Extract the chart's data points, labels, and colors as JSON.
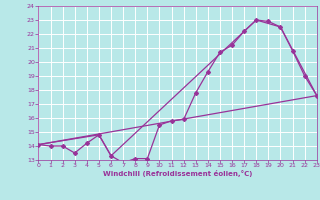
{
  "xlabel": "Windchill (Refroidissement éolien,°C)",
  "bg_color": "#b8e8e8",
  "grid_color": "#ffffff",
  "line_color": "#993399",
  "xlim": [
    0,
    23
  ],
  "ylim": [
    13,
    24
  ],
  "xticks": [
    0,
    1,
    2,
    3,
    4,
    5,
    6,
    7,
    8,
    9,
    10,
    11,
    12,
    13,
    14,
    15,
    16,
    17,
    18,
    19,
    20,
    21,
    22,
    23
  ],
  "yticks": [
    13,
    14,
    15,
    16,
    17,
    18,
    19,
    20,
    21,
    22,
    23,
    24
  ],
  "line1_x": [
    0,
    1,
    2,
    3,
    4,
    5,
    6,
    7,
    8,
    9,
    10,
    11,
    12,
    13,
    14,
    15,
    16,
    17,
    18,
    19,
    20,
    21,
    22,
    23
  ],
  "line1_y": [
    14.1,
    14.0,
    14.0,
    13.5,
    14.2,
    14.8,
    13.3,
    12.8,
    13.1,
    13.1,
    15.5,
    15.8,
    15.9,
    17.8,
    19.3,
    20.7,
    21.2,
    22.2,
    23.0,
    22.9,
    22.5,
    20.8,
    19.0,
    17.6
  ],
  "line2_x": [
    0,
    5,
    6,
    18,
    20,
    23
  ],
  "line2_y": [
    14.1,
    14.8,
    13.3,
    23.0,
    22.5,
    17.6
  ],
  "line3_x": [
    0,
    23
  ],
  "line3_y": [
    14.1,
    17.6
  ]
}
